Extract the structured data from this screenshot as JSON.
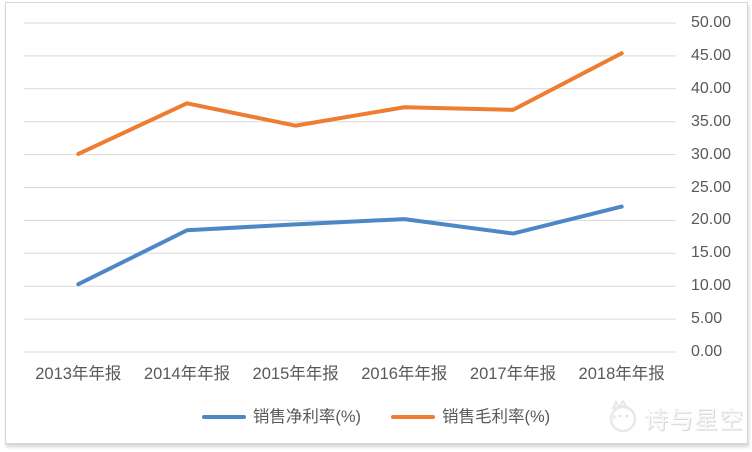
{
  "chart_data": {
    "type": "line",
    "categories": [
      "2013年年报",
      "2014年年报",
      "2015年年报",
      "2016年年报",
      "2017年年报",
      "2018年年报"
    ],
    "series": [
      {
        "key": "net-profit-margin",
        "name": "销售净利率(%)",
        "color": "#4E87C5",
        "values": [
          10.3,
          18.5,
          19.4,
          20.2,
          18.0,
          22.1
        ]
      },
      {
        "key": "gross-profit-margin",
        "name": "销售毛利率(%)",
        "color": "#ED7D31",
        "values": [
          30.1,
          37.8,
          34.4,
          37.2,
          36.8,
          45.4
        ]
      }
    ],
    "title": "",
    "xlabel": "",
    "ylabel": "",
    "y_axis": {
      "min": 0,
      "max": 50,
      "step": 5,
      "side": "right"
    },
    "y_ticks": [
      "0.00",
      "5.00",
      "10.00",
      "15.00",
      "20.00",
      "25.00",
      "30.00",
      "35.00",
      "40.00",
      "45.00",
      "50.00"
    ],
    "grid": true,
    "legend_position": "bottom"
  },
  "colors": {
    "gridline": "#d9d9d9",
    "axis_text": "#595959",
    "frame_border": "#d7d7d7",
    "background": "#ffffff"
  },
  "watermark": {
    "text": "诗与星空",
    "logo_icon": "cat-moon-logo-icon"
  }
}
